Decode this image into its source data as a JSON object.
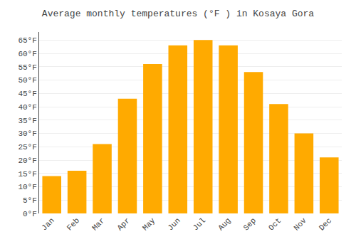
{
  "chart_data": {
    "type": "bar",
    "title": "Average monthly temperatures (°F ) in Kosaya Gora",
    "categories": [
      "Jan",
      "Feb",
      "Mar",
      "Apr",
      "May",
      "Jun",
      "Jul",
      "Aug",
      "Sep",
      "Oct",
      "Nov",
      "Dec"
    ],
    "values": [
      14,
      16,
      26,
      43,
      56,
      63,
      65,
      63,
      53,
      41,
      30,
      21
    ],
    "color": "#FFAA00",
    "ylim": [
      0,
      68
    ],
    "yticks": [
      {
        "value": 0,
        "label": "0°F"
      },
      {
        "value": 5,
        "label": "5°F"
      },
      {
        "value": 10,
        "label": "10°F"
      },
      {
        "value": 15,
        "label": "15°F"
      },
      {
        "value": 20,
        "label": "20°F"
      },
      {
        "value": 25,
        "label": "25°F"
      },
      {
        "value": 30,
        "label": "30°F"
      },
      {
        "value": 35,
        "label": "35°F"
      },
      {
        "value": 40,
        "label": "40°F"
      },
      {
        "value": 45,
        "label": "45°F"
      },
      {
        "value": 50,
        "label": "50°F"
      },
      {
        "value": 55,
        "label": "55°F"
      },
      {
        "value": 60,
        "label": "60°F"
      },
      {
        "value": 65,
        "label": "65°F"
      }
    ],
    "grid": true
  }
}
